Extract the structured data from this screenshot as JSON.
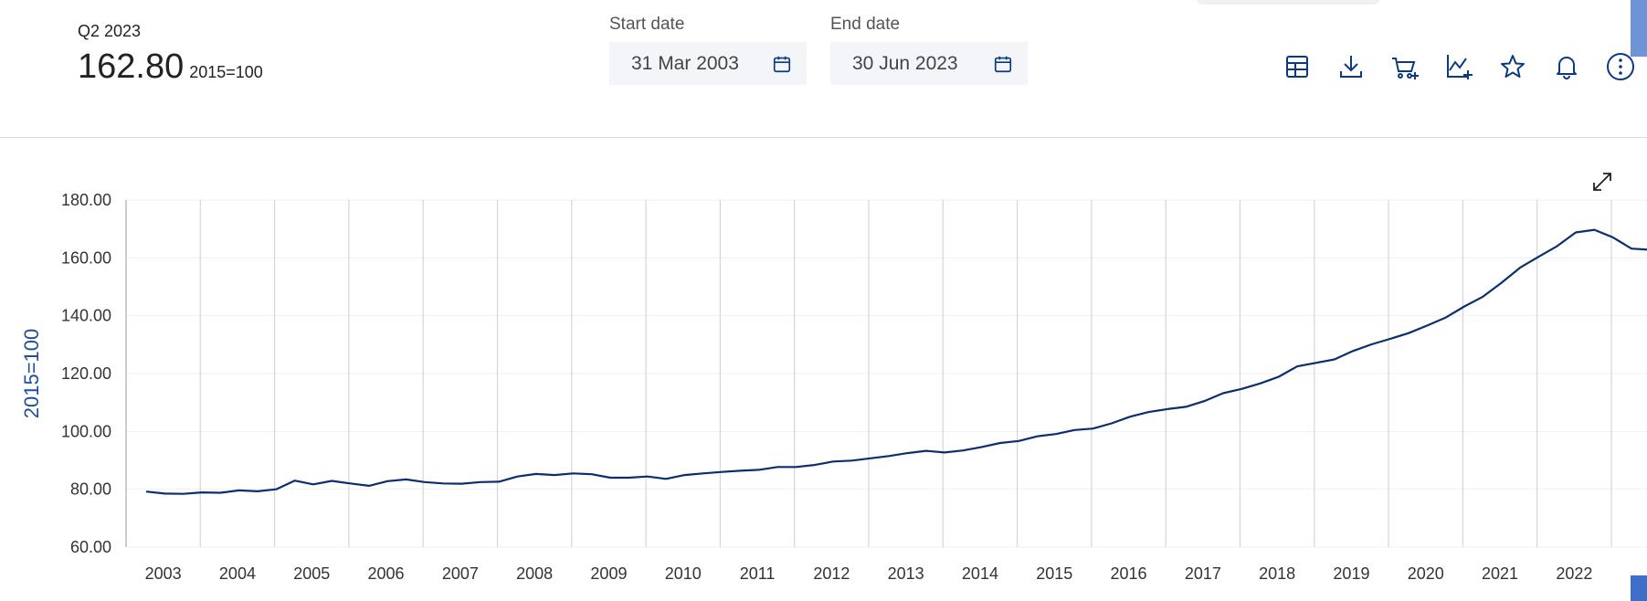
{
  "header": {
    "period": "Q2 2023",
    "value": "162.80",
    "unit": "2015=100"
  },
  "filters": {
    "start_label": "Start date",
    "start_value": "31 Mar 2003",
    "end_label": "End date",
    "end_value": "30 Jun 2023"
  },
  "toolbar_icons": [
    "table-icon",
    "download-icon",
    "cart-add-icon",
    "chart-add-icon",
    "star-icon",
    "bell-icon",
    "more-icon"
  ],
  "colors": {
    "accent": "#0b3a85",
    "line": "#0b2f6e",
    "grid": "#d6d6d6"
  },
  "chart_data": {
    "type": "line",
    "ylabel": "2015=100",
    "ylim": [
      60,
      180
    ],
    "y_ticks": [
      "60.00",
      "80.00",
      "100.00",
      "120.00",
      "140.00",
      "160.00",
      "180.00"
    ],
    "x_tick_labels": [
      "2003",
      "2004",
      "2005",
      "2006",
      "2007",
      "2008",
      "2009",
      "2010",
      "2011",
      "2012",
      "2013",
      "2014",
      "2015",
      "2016",
      "2017",
      "2018",
      "2019",
      "2020",
      "2021",
      "2022"
    ],
    "grid": "vertical year lines",
    "series": [
      {
        "x": [
          "2003-Q1",
          "2003-Q2",
          "2003-Q3",
          "2003-Q4",
          "2004-Q1",
          "2004-Q2",
          "2004-Q3",
          "2004-Q4",
          "2005-Q1",
          "2005-Q2",
          "2005-Q3",
          "2005-Q4",
          "2006-Q1",
          "2006-Q2",
          "2006-Q3",
          "2006-Q4",
          "2007-Q1",
          "2007-Q2",
          "2007-Q3",
          "2007-Q4",
          "2008-Q1",
          "2008-Q2",
          "2008-Q3",
          "2008-Q4",
          "2009-Q1",
          "2009-Q2",
          "2009-Q3",
          "2009-Q4",
          "2010-Q1",
          "2010-Q2",
          "2010-Q3",
          "2010-Q4",
          "2011-Q1",
          "2011-Q2",
          "2011-Q3",
          "2011-Q4",
          "2012-Q1",
          "2012-Q2",
          "2012-Q3",
          "2012-Q4",
          "2013-Q1",
          "2013-Q2",
          "2013-Q3",
          "2013-Q4",
          "2014-Q1",
          "2014-Q2",
          "2014-Q3",
          "2014-Q4",
          "2015-Q1",
          "2015-Q2",
          "2015-Q3",
          "2015-Q4",
          "2016-Q1",
          "2016-Q2",
          "2016-Q3",
          "2016-Q4",
          "2017-Q1",
          "2017-Q2",
          "2017-Q3",
          "2017-Q4",
          "2018-Q1",
          "2018-Q2",
          "2018-Q3",
          "2018-Q4",
          "2019-Q1",
          "2019-Q2",
          "2019-Q3",
          "2019-Q4",
          "2020-Q1",
          "2020-Q2",
          "2020-Q3",
          "2020-Q4",
          "2021-Q1",
          "2021-Q2",
          "2021-Q3",
          "2021-Q4",
          "2022-Q1",
          "2022-Q2",
          "2022-Q3",
          "2022-Q4",
          "2023-Q1",
          "2023-Q2"
        ],
        "values": [
          79.2,
          78.5,
          78.4,
          78.9,
          78.8,
          79.6,
          79.3,
          80.0,
          83.0,
          81.7,
          82.9,
          82.0,
          81.2,
          82.8,
          83.4,
          82.5,
          82.0,
          81.9,
          82.5,
          82.6,
          84.4,
          85.3,
          84.9,
          85.5,
          85.2,
          84.0,
          84.0,
          84.4,
          83.6,
          84.9,
          85.5,
          86.0,
          86.4,
          86.7,
          87.7,
          87.7,
          88.4,
          89.6,
          89.9,
          90.7,
          91.5,
          92.5,
          93.3,
          92.7,
          93.4,
          94.6,
          96.0,
          96.7,
          98.3,
          99.1,
          100.5,
          101.0,
          102.8,
          105.1,
          106.7,
          107.7,
          108.5,
          110.5,
          113.2,
          114.7,
          116.6,
          118.9,
          122.5,
          123.7,
          124.9,
          127.8,
          130.1,
          132.0,
          134.0,
          136.6,
          139.4,
          143.2,
          146.6,
          151.4,
          156.6,
          160.4,
          164.1,
          168.8,
          169.7,
          167.1,
          163.2,
          162.8
        ]
      }
    ]
  }
}
